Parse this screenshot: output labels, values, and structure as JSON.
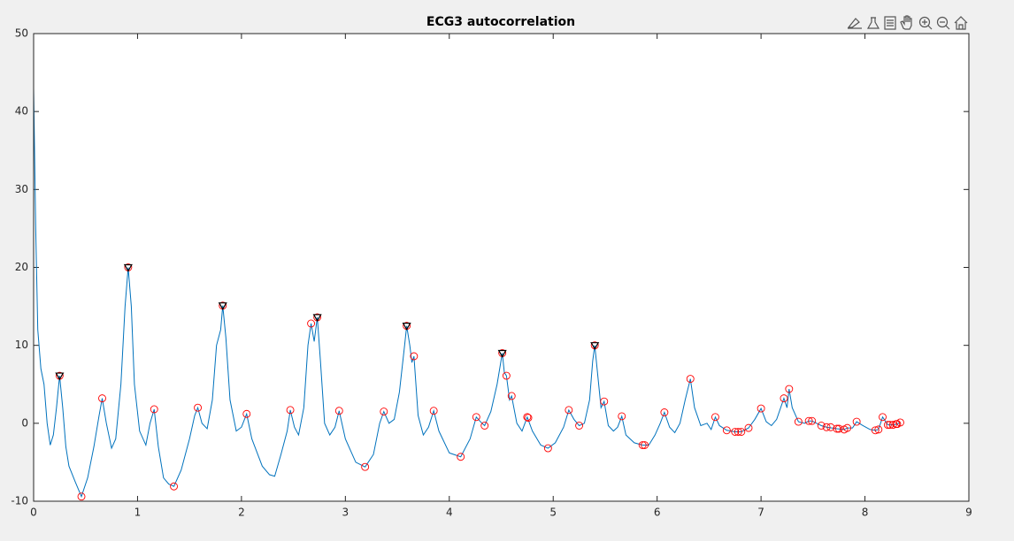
{
  "chart_data": {
    "type": "line",
    "title": "ECG3 autocorrelation",
    "xlim": [
      0,
      9
    ],
    "xticks": [
      0,
      1,
      2,
      3,
      4,
      5,
      6,
      7,
      8,
      9
    ],
    "ylim": [
      -10,
      50
    ],
    "yticks": [
      -10,
      0,
      10,
      20,
      30,
      40,
      50
    ],
    "series": [
      {
        "type": "line",
        "color": "#0072bd",
        "x": [
          0,
          0.02,
          0.04,
          0.07,
          0.1,
          0.13,
          0.16,
          0.19,
          0.22,
          0.25,
          0.28,
          0.31,
          0.34,
          0.4,
          0.46,
          0.52,
          0.58,
          0.63,
          0.66,
          0.7,
          0.75,
          0.79,
          0.84,
          0.88,
          0.91,
          0.94,
          0.97,
          1.02,
          1.08,
          1.12,
          1.16,
          1.2,
          1.25,
          1.3,
          1.35,
          1.42,
          1.5,
          1.55,
          1.58,
          1.62,
          1.67,
          1.72,
          1.76,
          1.8,
          1.82,
          1.85,
          1.89,
          1.95,
          2.0,
          2.05,
          2.1,
          2.2,
          2.27,
          2.32,
          2.38,
          2.44,
          2.47,
          2.51,
          2.55,
          2.6,
          2.64,
          2.67,
          2.7,
          2.73,
          2.76,
          2.8,
          2.85,
          2.9,
          2.94,
          3.0,
          3.1,
          3.19,
          3.27,
          3.33,
          3.37,
          3.42,
          3.47,
          3.52,
          3.57,
          3.59,
          3.62,
          3.64,
          3.66,
          3.7,
          3.75,
          3.8,
          3.85,
          3.9,
          4.0,
          4.11,
          4.2,
          4.26,
          4.3,
          4.34,
          4.4,
          4.46,
          4.51,
          4.53,
          4.55,
          4.58,
          4.6,
          4.65,
          4.7,
          4.75,
          4.8,
          4.88,
          4.95,
          5.02,
          5.1,
          5.15,
          5.2,
          5.25,
          5.3,
          5.35,
          5.38,
          5.4,
          5.43,
          5.46,
          5.49,
          5.53,
          5.58,
          5.62,
          5.66,
          5.7,
          5.78,
          5.86,
          5.92,
          5.98,
          6.03,
          6.07,
          6.12,
          6.17,
          6.22,
          6.27,
          6.32,
          6.36,
          6.42,
          6.48,
          6.52,
          6.56,
          6.6,
          6.67,
          6.75,
          6.81,
          6.88,
          6.94,
          7.0,
          7.05,
          7.1,
          7.15,
          7.22,
          7.25,
          7.27,
          7.3,
          7.36,
          7.42,
          7.46,
          7.49,
          7.58,
          7.63,
          7.73,
          7.8,
          7.83,
          7.88,
          7.92,
          7.98,
          8.05,
          8.1,
          8.13,
          8.17,
          8.22,
          8.27,
          8.31,
          8.34
        ],
        "values": [
          43,
          25,
          12,
          7,
          5,
          0,
          -2.8,
          -1.5,
          2,
          6.1,
          2,
          -3,
          -5.5,
          -7.5,
          -9.4,
          -7,
          -3,
          1,
          3.2,
          0,
          -3.2,
          -2,
          5,
          15,
          20,
          15,
          5,
          -1,
          -2.8,
          0,
          1.8,
          -3,
          -7,
          -7.8,
          -8.1,
          -6,
          -2,
          1,
          2,
          0,
          -0.7,
          3,
          10,
          12,
          15.1,
          11,
          3,
          -1,
          -0.5,
          1.2,
          -2,
          -5.5,
          -6.6,
          -6.8,
          -4,
          -1,
          1.7,
          -0.5,
          -1.5,
          2,
          10,
          12.8,
          10.5,
          13.6,
          8,
          0,
          -1.5,
          -0.5,
          1.6,
          -2,
          -5,
          -5.6,
          -4,
          0,
          1.5,
          0,
          0.5,
          4,
          10,
          12.5,
          10,
          7.8,
          8.6,
          1,
          -1.5,
          -0.5,
          1.6,
          -1,
          -3.8,
          -4.3,
          -2,
          0.8,
          0.2,
          -0.3,
          1.5,
          5,
          9,
          6.5,
          6.1,
          3,
          3.5,
          0,
          -1,
          0.8,
          -1,
          -2.8,
          -3.2,
          -2.5,
          -0.5,
          1.7,
          0.5,
          -0.3,
          0,
          3,
          8,
          10,
          6,
          2,
          2.8,
          -0.3,
          -1,
          -0.5,
          0.9,
          -1.5,
          -2.5,
          -2.8,
          -2.8,
          -1.5,
          0,
          1.4,
          -0.5,
          -1.2,
          0,
          3,
          5.7,
          2,
          -0.3,
          0,
          -0.8,
          0.8,
          -0.3,
          -0.9,
          -1.1,
          -1.1,
          -0.6,
          0.5,
          1.9,
          0.2,
          -0.3,
          0.5,
          3.2,
          2,
          4.4,
          2,
          0.2,
          0,
          0.3,
          0.3,
          -0.3,
          -0.5,
          -0.7,
          -0.8,
          -0.6,
          -0.6,
          0.2,
          -0.3,
          -0.8,
          -0.9,
          -0.8,
          0.8,
          -0.2,
          -0.2,
          -0.1,
          0.1
        ]
      },
      {
        "type": "scatter",
        "marker": "circle",
        "color": "#ff0000",
        "x": [
          0.46,
          0.66,
          1.16,
          1.35,
          1.58,
          2.05,
          2.47,
          2.67,
          2.94,
          3.19,
          3.37,
          3.66,
          3.85,
          4.11,
          4.26,
          4.34,
          4.55,
          4.6,
          4.75,
          4.76,
          4.95,
          5.15,
          5.25,
          5.49,
          5.66,
          5.86,
          5.88,
          6.07,
          6.32,
          6.56,
          6.67,
          6.75,
          6.78,
          6.81,
          6.88,
          7.0,
          7.22,
          7.27,
          7.36,
          7.46,
          7.49,
          7.58,
          7.63,
          7.67,
          7.73,
          7.75,
          7.8,
          7.83,
          7.92,
          8.1,
          8.13,
          8.17,
          8.22,
          8.24,
          8.27,
          8.3,
          8.31,
          8.34
        ],
        "values": [
          -9.4,
          3.2,
          1.8,
          -8.1,
          2,
          1.2,
          1.7,
          12.8,
          1.6,
          -5.6,
          1.5,
          8.6,
          1.6,
          -4.3,
          0.8,
          -0.3,
          6.1,
          3.5,
          0.8,
          0.7,
          -3.2,
          1.7,
          -0.3,
          2.8,
          0.9,
          -2.8,
          -2.8,
          1.4,
          5.7,
          0.8,
          -0.9,
          -1.1,
          -1.1,
          -1.1,
          -0.6,
          1.9,
          3.2,
          4.4,
          0.2,
          0.3,
          0.3,
          -0.3,
          -0.5,
          -0.5,
          -0.7,
          -0.7,
          -0.8,
          -0.6,
          0.2,
          -0.9,
          -0.8,
          0.8,
          -0.2,
          -0.2,
          -0.2,
          -0.1,
          -0.1,
          0.1
        ]
      },
      {
        "type": "scatter",
        "marker": "triangle-down",
        "color": "#000000",
        "edge_color": "#ff0000",
        "x": [
          0.25,
          0.91,
          1.82,
          2.73,
          3.59,
          4.51,
          5.4
        ],
        "values": [
          6.1,
          20,
          15.1,
          13.6,
          12.5,
          9,
          10
        ]
      }
    ]
  }
}
